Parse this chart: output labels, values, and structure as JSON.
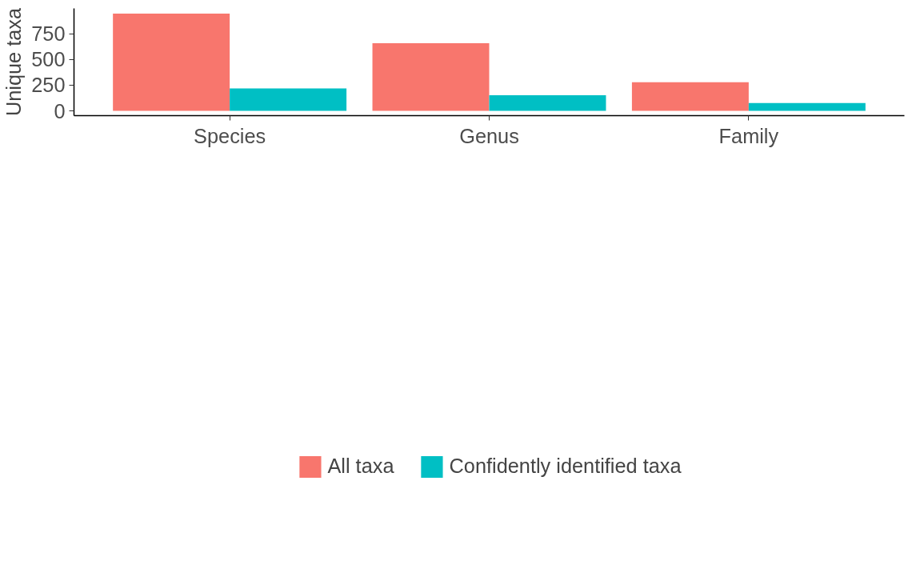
{
  "chart_data": {
    "type": "bar",
    "ylabel": "Unique taxa",
    "categories": [
      "Species",
      "Genus",
      "Family"
    ],
    "series": [
      {
        "name": "All taxa",
        "color": "#f8766d",
        "values": [
          945,
          658,
          279
        ]
      },
      {
        "name": "Confidently identified taxa",
        "color": "#00bfc4",
        "values": [
          219,
          153,
          77
        ]
      }
    ],
    "ylim": [
      -46,
      995
    ],
    "yticks": [
      0,
      250,
      500,
      750
    ],
    "grid": false,
    "legend": "bottom"
  }
}
